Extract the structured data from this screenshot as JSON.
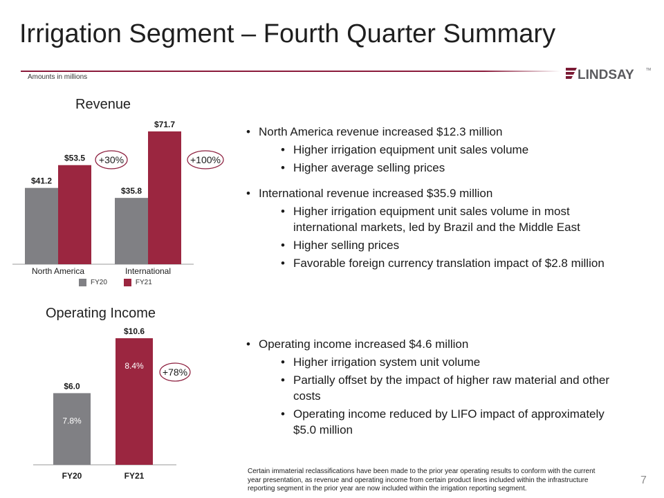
{
  "title": "Irrigation Segment – Fourth Quarter Summary",
  "subtitle_note": "Amounts in millions",
  "logo_text": "LINDSAY",
  "colors": {
    "fy20": "#808084",
    "fy21": "#9b2640",
    "accent": "#8a1a3a"
  },
  "revenue": {
    "title": "Revenue",
    "legend": [
      "FY20",
      "FY21"
    ]
  },
  "operating_income": {
    "title": "Operating Income"
  },
  "chart_data": [
    {
      "type": "bar",
      "title": "Revenue",
      "categories": [
        "North America",
        "International"
      ],
      "series": [
        {
          "name": "FY20",
          "values": [
            41.2,
            35.8
          ],
          "labels": [
            "$41.2",
            "$35.8"
          ]
        },
        {
          "name": "FY21",
          "values": [
            53.5,
            71.7
          ],
          "labels": [
            "$53.5",
            "$71.7"
          ]
        }
      ],
      "changes": [
        "+30%",
        "+100%"
      ],
      "ylim": [
        0,
        71.7
      ]
    },
    {
      "type": "bar",
      "title": "Operating Income",
      "categories": [
        "FY20",
        "FY21"
      ],
      "values": [
        6.0,
        10.6
      ],
      "labels": [
        "$6.0",
        "$10.6"
      ],
      "margins": [
        "7.8%",
        "8.4%"
      ],
      "change": "+78%",
      "ylim": [
        0,
        10.6
      ]
    }
  ],
  "bullets_revenue": [
    {
      "text": "North America revenue increased $12.3 million",
      "subs": [
        "Higher irrigation equipment unit sales volume",
        "Higher average selling prices"
      ]
    },
    {
      "text": "International revenue increased $35.9 million",
      "subs": [
        "Higher irrigation equipment unit sales volume in most international markets, led by Brazil and the Middle East",
        "Higher selling prices",
        "Favorable foreign currency translation impact of $2.8 million"
      ]
    }
  ],
  "bullets_income": [
    {
      "text": "Operating income increased $4.6 million",
      "subs": [
        "Higher irrigation system unit volume",
        "Partially offset by the impact of higher raw material and other costs",
        "Operating income reduced by LIFO impact of approximately $5.0 million"
      ]
    }
  ],
  "footnote": "Certain immaterial reclassifications have been made to the prior year operating results to conform with the current year presentation, as revenue and operating income from certain product lines included within the infrastructure reporting segment in the prior year are now included within the irrigation reporting segment.",
  "page_number": "7"
}
